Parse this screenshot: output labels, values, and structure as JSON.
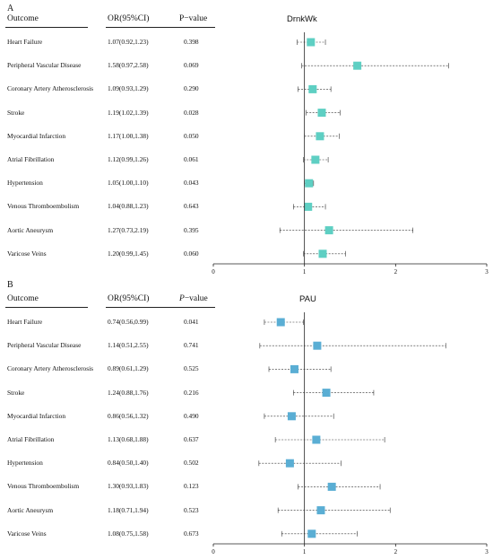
{
  "chart_data": [
    {
      "type": "forest",
      "panel_letter": "A",
      "series_name": "DrnkWk",
      "columns": {
        "outcome": "Outcome",
        "or": "OR(95%CI)",
        "p_prefix": "P",
        "p_suffix": "−value"
      },
      "colors": {
        "marker": "#5ecfc3"
      },
      "xlim": [
        0,
        3
      ],
      "x_ticks": [
        0,
        1,
        2,
        3
      ],
      "reference_line": 1,
      "rows": [
        {
          "outcome": "Heart Failure",
          "or_text": "1.07(0.92,1.23)",
          "p": "0.398",
          "or": 1.07,
          "lo": 0.92,
          "hi": 1.23
        },
        {
          "outcome": "Peripheral Vascular Disease",
          "or_text": "1.58(0.97,2.58)",
          "p": "0.069",
          "or": 1.58,
          "lo": 0.97,
          "hi": 2.58
        },
        {
          "outcome": "Coronary Artery Atherosclerosis",
          "or_text": "1.09(0.93,1.29)",
          "p": "0.290",
          "or": 1.09,
          "lo": 0.93,
          "hi": 1.29
        },
        {
          "outcome": "Stroke",
          "or_text": "1.19(1.02,1.39)",
          "p": "0.028",
          "or": 1.19,
          "lo": 1.02,
          "hi": 1.39
        },
        {
          "outcome": "Myocardial Infarction",
          "or_text": "1.17(1.00,1.38)",
          "p": "0.050",
          "or": 1.17,
          "lo": 1.0,
          "hi": 1.38
        },
        {
          "outcome": "Atrial Fibrillation",
          "or_text": "1.12(0.99,1.26)",
          "p": "0.061",
          "or": 1.12,
          "lo": 0.99,
          "hi": 1.26
        },
        {
          "outcome": "Hypertension",
          "or_text": "1.05(1.00,1.10)",
          "p": "0.043",
          "or": 1.05,
          "lo": 1.0,
          "hi": 1.1
        },
        {
          "outcome": "Venous Thromboembolism",
          "or_text": "1.04(0.88,1.23)",
          "p": "0.643",
          "or": 1.04,
          "lo": 0.88,
          "hi": 1.23
        },
        {
          "outcome": "Aortic Aneurysm",
          "or_text": "1.27(0.73,2.19)",
          "p": "0.395",
          "or": 1.27,
          "lo": 0.73,
          "hi": 2.19
        },
        {
          "outcome": "Varicose Veins",
          "or_text": "1.20(0.99,1.45)",
          "p": "0.060",
          "or": 1.2,
          "lo": 0.99,
          "hi": 1.45
        }
      ]
    },
    {
      "type": "forest",
      "panel_letter": "B",
      "series_name": "PAU",
      "columns": {
        "outcome": "Outcome",
        "or": "OR(95%CI)",
        "p_prefix": "P",
        "p_suffix": "−value"
      },
      "colors": {
        "marker": "#5aaed4"
      },
      "xlim": [
        0,
        3
      ],
      "x_ticks": [
        0,
        1,
        2,
        3
      ],
      "reference_line": 1,
      "rows": [
        {
          "outcome": "Heart Failure",
          "or_text": "0.74(0.56,0.99)",
          "p": "0.041",
          "or": 0.74,
          "lo": 0.56,
          "hi": 0.99
        },
        {
          "outcome": "Peripheral Vascular Disease",
          "or_text": "1.14(0.51,2.55)",
          "p": "0.741",
          "or": 1.14,
          "lo": 0.51,
          "hi": 2.55
        },
        {
          "outcome": "Coronary Artery Atherosclerosis",
          "or_text": "0.89(0.61,1.29)",
          "p": "0.525",
          "or": 0.89,
          "lo": 0.61,
          "hi": 1.29
        },
        {
          "outcome": "Stroke",
          "or_text": "1.24(0.88,1.76)",
          "p": "0.216",
          "or": 1.24,
          "lo": 0.88,
          "hi": 1.76
        },
        {
          "outcome": "Myocardial Infarction",
          "or_text": "0.86(0.56,1.32)",
          "p": "0.490",
          "or": 0.86,
          "lo": 0.56,
          "hi": 1.32
        },
        {
          "outcome": "Atrial Fibrillation",
          "or_text": "1.13(0.68,1.88)",
          "p": "0.637",
          "or": 1.13,
          "lo": 0.68,
          "hi": 1.88
        },
        {
          "outcome": "Hypertension",
          "or_text": "0.84(0.50,1.40)",
          "p": "0.502",
          "or": 0.84,
          "lo": 0.5,
          "hi": 1.4
        },
        {
          "outcome": "Venous Thromboembolism",
          "or_text": "1.30(0.93,1.83)",
          "p": "0.123",
          "or": 1.3,
          "lo": 0.93,
          "hi": 1.83
        },
        {
          "outcome": "Aortic Aneurysm",
          "or_text": "1.18(0.71,1.94)",
          "p": "0.523",
          "or": 1.18,
          "lo": 0.71,
          "hi": 1.94
        },
        {
          "outcome": "Varicose Veins",
          "or_text": "1.08(0.75,1.58)",
          "p": "0.673",
          "or": 1.08,
          "lo": 0.75,
          "hi": 1.58
        }
      ]
    }
  ]
}
